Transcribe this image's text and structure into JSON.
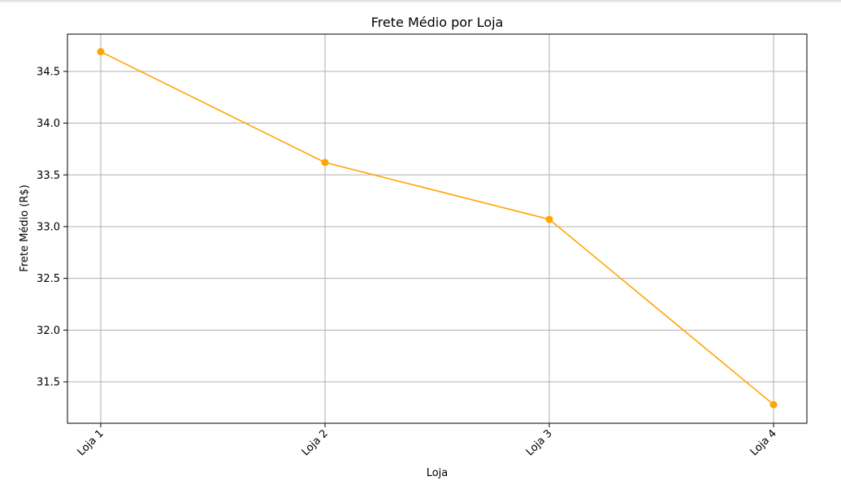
{
  "chart_data": {
    "type": "line",
    "title": "Frete Médio por Loja",
    "xlabel": "Loja",
    "ylabel": "Frete Médio (R$)",
    "categories": [
      "Loja 1",
      "Loja 2",
      "Loja 3",
      "Loja 4"
    ],
    "series": [
      {
        "name": "Frete Médio",
        "values": [
          34.69,
          33.62,
          33.07,
          31.28
        ]
      }
    ],
    "ylim": [
      31.1,
      34.86
    ],
    "yticks": [
      "31.5",
      "32.0",
      "32.5",
      "33.0",
      "33.5",
      "34.0",
      "34.5"
    ],
    "grid": true,
    "line_color": "#FFA500",
    "grid_color": "#b0b0b0",
    "xtick_rotation": "45 degrees"
  }
}
